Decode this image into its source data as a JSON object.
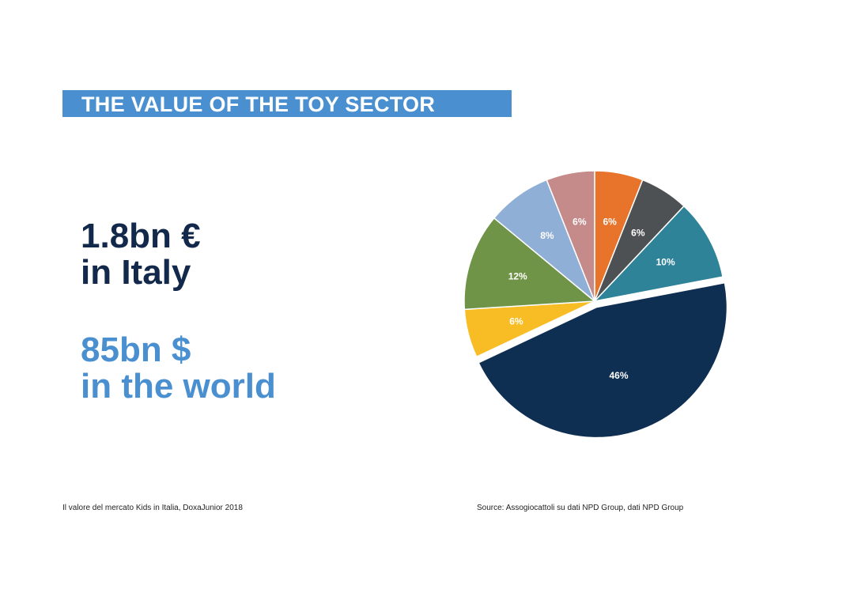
{
  "title": "THE VALUE OF THE TOY SECTOR",
  "italy": {
    "line1": "1.8bn €",
    "line2": "in Italy"
  },
  "world": {
    "line1": "85bn $",
    "line2": "in the world"
  },
  "footnotes": {
    "left": "Il valore del mercato Kids in Italia, DoxaJunior 2018",
    "right": "Source: Assogiocattoli su dati NPD Group, dati NPD Group"
  },
  "colors": {
    "banner": "#4a90d0",
    "dark_blue": "#13294b",
    "light_blue": "#4a90d0"
  },
  "chart_data": {
    "type": "pie",
    "slices": [
      {
        "label": "6%",
        "value": 6,
        "color": "#e8732a",
        "exploded": false
      },
      {
        "label": "6%",
        "value": 6,
        "color": "#4d5153",
        "exploded": false
      },
      {
        "label": "10%",
        "value": 10,
        "color": "#2e8399",
        "exploded": false
      },
      {
        "label": "46%",
        "value": 46,
        "color": "#0f2f52",
        "exploded": true
      },
      {
        "label": "6%",
        "value": 6,
        "color": "#f8bd25",
        "exploded": false
      },
      {
        "label": "12%",
        "value": 12,
        "color": "#6f9447",
        "exploded": false
      },
      {
        "label": "8%",
        "value": 8,
        "color": "#8fafd6",
        "exploded": false
      },
      {
        "label": "6%",
        "value": 6,
        "color": "#c58a8a",
        "exploded": false
      }
    ],
    "start": "12 o'clock",
    "direction": "clockwise"
  }
}
